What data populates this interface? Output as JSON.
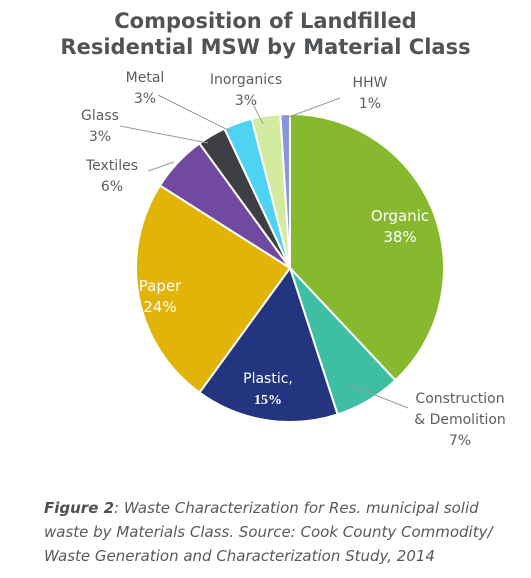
{
  "chart_data": {
    "type": "pie",
    "title_line1": "Composition of Landfilled",
    "title_line2": "Residential MSW by Material Class",
    "start_angle_deg": 0,
    "direction": "clockwise",
    "slices": [
      {
        "name": "Organic",
        "value": 38,
        "label_line1": "Organic",
        "label_line2": "38%",
        "color": "#86b92e"
      },
      {
        "name": "Construction & Demolition",
        "value": 7,
        "label_line1": "Construction",
        "label_line2": "& Demolition",
        "label_line3": "7%",
        "color": "#3ebfa3"
      },
      {
        "name": "Plastic",
        "value": 15,
        "label_line1": "Plastic,",
        "label_line2": "15%",
        "color": "#24357f"
      },
      {
        "name": "Paper",
        "value": 24,
        "label_line1": "Paper",
        "label_line2": "24%",
        "color": "#e2b407"
      },
      {
        "name": "Textiles",
        "value": 6,
        "label_line1": "Textiles",
        "label_line2": "6%",
        "color": "#7249a0"
      },
      {
        "name": "Glass",
        "value": 3,
        "label_line1": "Glass",
        "label_line2": "3%",
        "color": "#3e3f42"
      },
      {
        "name": "Metal",
        "value": 3,
        "label_line1": "Metal",
        "label_line2": "3%",
        "color": "#4fd3f2"
      },
      {
        "name": "Inorganics",
        "value": 3,
        "label_line1": "Inorganics",
        "label_line2": "3%",
        "color": "#d3eb9f"
      },
      {
        "name": "HHW",
        "value": 1,
        "label_line1": "HHW",
        "label_line2": "1%",
        "color": "#8a96dc"
      }
    ]
  },
  "caption": {
    "label": "Figure 2",
    "text": ": Waste Characterization for Res. municipal solid waste by Materials Class. Source: Cook County Commodity/ Waste Generation and Characterization Study, 2014"
  }
}
